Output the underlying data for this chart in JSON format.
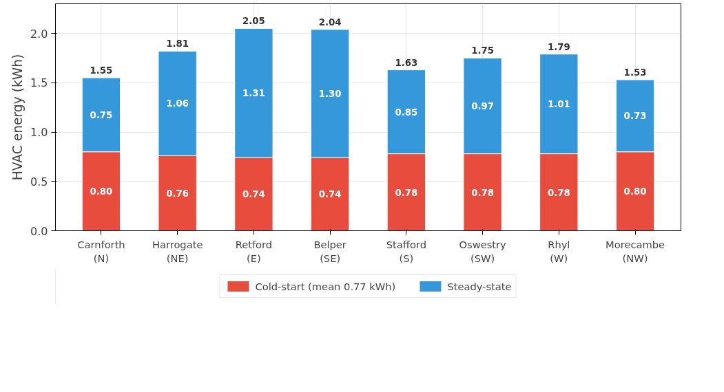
{
  "chart_data": {
    "type": "bar",
    "stacked": true,
    "ylabel": "HVAC energy (kWh)",
    "categories": [
      "Carnforth\n(N)",
      "Harrogate\n(NE)",
      "Retford\n(E)",
      "Belper\n(SE)",
      "Stafford\n(S)",
      "Oswestry\n(SW)",
      "Rhyl\n(W)",
      "Morecambe\n(NW)"
    ],
    "series": [
      {
        "name": "Cold-start (mean 0.77 kWh)",
        "color": "#e74c3c",
        "values": [
          0.8,
          0.76,
          0.74,
          0.74,
          0.78,
          0.78,
          0.78,
          0.8
        ],
        "value_labels": [
          "0.80",
          "0.76",
          "0.74",
          "0.74",
          "0.78",
          "0.78",
          "0.78",
          "0.80"
        ]
      },
      {
        "name": "Steady-state",
        "color": "#3498db",
        "values": [
          0.75,
          1.06,
          1.31,
          1.3,
          0.85,
          0.97,
          1.01,
          0.73
        ],
        "value_labels": [
          "0.75",
          "1.06",
          "1.31",
          "1.30",
          "0.85",
          "0.97",
          "1.01",
          "0.73"
        ]
      }
    ],
    "totals": [
      "1.55",
      "1.81",
      "2.05",
      "2.04",
      "1.63",
      "1.75",
      "1.79",
      "1.53"
    ],
    "ylim": [
      0,
      2.3
    ],
    "yticks": [
      {
        "value": 0,
        "label": "0.0"
      },
      {
        "value": 0.5,
        "label": "0.5"
      },
      {
        "value": 1.0,
        "label": "1.0"
      },
      {
        "value": 1.5,
        "label": "1.5"
      },
      {
        "value": 2.0,
        "label": "2.0"
      }
    ],
    "grid": true,
    "legend": "bottom"
  }
}
